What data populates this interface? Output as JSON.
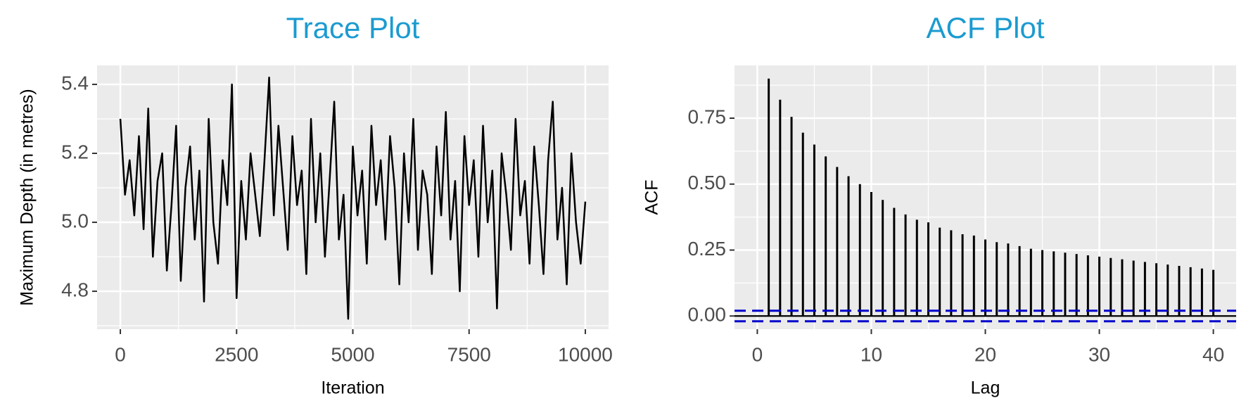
{
  "chart_data": [
    {
      "type": "line",
      "title": "Trace Plot",
      "title_color": "#1b9bd0",
      "x_label": "Iteration",
      "y_label": "Maximum Depth (in metres)",
      "x": [
        0,
        100,
        200,
        300,
        400,
        500,
        600,
        700,
        800,
        900,
        1000,
        1100,
        1200,
        1300,
        1400,
        1500,
        1600,
        1700,
        1800,
        1900,
        2000,
        2100,
        2200,
        2300,
        2400,
        2500,
        2600,
        2700,
        2800,
        2900,
        3000,
        3100,
        3200,
        3300,
        3400,
        3500,
        3600,
        3700,
        3800,
        3900,
        4000,
        4100,
        4200,
        4300,
        4400,
        4500,
        4600,
        4700,
        4800,
        4900,
        5000,
        5100,
        5200,
        5300,
        5400,
        5500,
        5600,
        5700,
        5800,
        5900,
        6000,
        6100,
        6200,
        6300,
        6400,
        6500,
        6600,
        6700,
        6800,
        6900,
        7000,
        7100,
        7200,
        7300,
        7400,
        7500,
        7600,
        7700,
        7800,
        7900,
        8000,
        8100,
        8200,
        8300,
        8400,
        8500,
        8600,
        8700,
        8800,
        8900,
        9000,
        9100,
        9200,
        9300,
        9400,
        9500,
        9600,
        9700,
        9800,
        9900,
        10000
      ],
      "series": [
        {
          "color": "#000000",
          "values": [
            5.3,
            5.08,
            5.18,
            5.02,
            5.25,
            4.98,
            5.33,
            4.9,
            5.12,
            5.2,
            4.86,
            5.05,
            5.28,
            4.83,
            5.1,
            5.22,
            4.95,
            5.15,
            4.77,
            5.3,
            5.0,
            4.88,
            5.18,
            5.05,
            5.4,
            4.78,
            5.12,
            4.95,
            5.2,
            5.08,
            4.96,
            5.18,
            5.42,
            5.02,
            5.28,
            5.1,
            4.92,
            5.25,
            5.05,
            5.15,
            4.85,
            5.3,
            5.0,
            5.2,
            4.9,
            5.12,
            5.35,
            4.95,
            5.08,
            4.72,
            5.22,
            5.02,
            5.15,
            4.88,
            5.28,
            5.05,
            5.18,
            4.95,
            5.25,
            5.1,
            4.82,
            5.2,
            5.0,
            5.3,
            4.92,
            5.15,
            5.08,
            4.85,
            5.22,
            5.02,
            5.32,
            4.95,
            5.12,
            4.8,
            5.25,
            5.05,
            5.18,
            4.9,
            5.28,
            5.0,
            5.15,
            4.75,
            5.2,
            5.08,
            4.92,
            5.3,
            5.02,
            5.12,
            4.88,
            5.22,
            5.05,
            4.85,
            5.18,
            5.35,
            4.95,
            5.1,
            4.82,
            5.2,
            5.0,
            4.88,
            5.06
          ]
        }
      ],
      "xlim": [
        -500,
        10500
      ],
      "xticks": [
        0,
        2500,
        5000,
        7500,
        10000
      ],
      "ylim": [
        4.69,
        5.455
      ],
      "yticks": [
        4.8,
        {
          "value": 5,
          "label": "5.0"
        },
        5.2,
        5.4
      ],
      "grid": true
    },
    {
      "type": "bar",
      "title": "ACF Plot",
      "title_color": "#1b9bd0",
      "x_label": "Lag",
      "y_label": "ACF",
      "x": [
        1,
        2,
        3,
        4,
        5,
        6,
        7,
        8,
        9,
        10,
        11,
        12,
        13,
        14,
        15,
        16,
        17,
        18,
        19,
        20,
        21,
        22,
        23,
        24,
        25,
        26,
        27,
        28,
        29,
        30,
        31,
        32,
        33,
        34,
        35,
        36,
        37,
        38,
        39,
        40
      ],
      "values": [
        0.9,
        0.82,
        0.755,
        0.695,
        0.65,
        0.605,
        0.565,
        0.53,
        0.5,
        0.47,
        0.44,
        0.41,
        0.385,
        0.365,
        0.355,
        0.335,
        0.325,
        0.31,
        0.305,
        0.29,
        0.28,
        0.275,
        0.265,
        0.255,
        0.25,
        0.245,
        0.24,
        0.235,
        0.23,
        0.225,
        0.22,
        0.215,
        0.21,
        0.205,
        0.2,
        0.195,
        0.19,
        0.185,
        0.18,
        0.175
      ],
      "color": "#000000",
      "baseline": 0,
      "conf_bounds": [
        -0.02,
        0.02
      ],
      "conf_color": "#0000cc",
      "xlim": [
        -2,
        42
      ],
      "xticks": [
        0,
        10,
        20,
        30,
        40
      ],
      "ylim": [
        -0.05,
        0.95
      ],
      "yticks": [
        {
          "value": 0,
          "label": "0.00"
        },
        {
          "value": 0.25,
          "label": "0.25"
        },
        {
          "value": 0.5,
          "label": "0.50"
        },
        {
          "value": 0.75,
          "label": "0.75"
        }
      ],
      "grid": true
    }
  ]
}
